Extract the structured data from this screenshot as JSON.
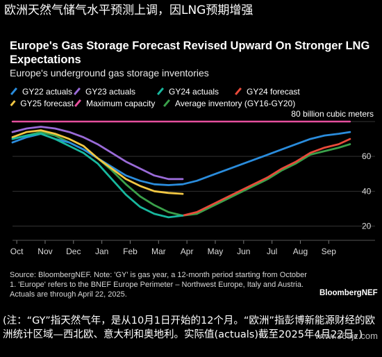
{
  "headline": "欧洲天然气储气水平预测上调，因LNG预期增强",
  "chart_data": {
    "type": "line",
    "title": "Europe's Gas Storage Forecast Revised Upward On Stronger LNG Expectations",
    "subtitle": "Europe's underground gas storage inventories",
    "xlabel": "",
    "ylabel": "",
    "categories": [
      "Oct",
      "Nov",
      "Dec",
      "Jan",
      "Feb",
      "Mar",
      "Apr",
      "May",
      "Jun",
      "Jul",
      "Aug",
      "Sep"
    ],
    "x_range": [
      0,
      12
    ],
    "y_ticks": [
      20,
      40,
      60
    ],
    "y_range": [
      15,
      82
    ],
    "capacity_label": "80 billion cubic meters",
    "legend_position": "top",
    "grid": "horizontal",
    "series": [
      {
        "name": "GY22 actuals",
        "color": "#2a8cdc",
        "points": [
          [
            0,
            68
          ],
          [
            0.5,
            71
          ],
          [
            1,
            73
          ],
          [
            1.5,
            70
          ],
          [
            2,
            68
          ],
          [
            2.5,
            64
          ],
          [
            3,
            59
          ],
          [
            3.5,
            54
          ],
          [
            4,
            49
          ],
          [
            4.5,
            46
          ],
          [
            5,
            44
          ],
          [
            5.5,
            43.5
          ],
          [
            6,
            44
          ],
          [
            6.5,
            46
          ],
          [
            7,
            49
          ],
          [
            7.5,
            52
          ],
          [
            8,
            55
          ],
          [
            8.5,
            58
          ],
          [
            9,
            61
          ],
          [
            9.5,
            64
          ],
          [
            10,
            67
          ],
          [
            10.5,
            70
          ],
          [
            11,
            72
          ],
          [
            11.5,
            73
          ],
          [
            11.9,
            74
          ]
        ]
      },
      {
        "name": "GY23 actuals",
        "color": "#9a6bd8",
        "points": [
          [
            0,
            74
          ],
          [
            0.5,
            76
          ],
          [
            1,
            77
          ],
          [
            1.5,
            76
          ],
          [
            2,
            74
          ],
          [
            2.5,
            71
          ],
          [
            3,
            67
          ],
          [
            3.5,
            62
          ],
          [
            4,
            57
          ],
          [
            4.5,
            53
          ],
          [
            5,
            49
          ],
          [
            5.5,
            47
          ],
          [
            6,
            47
          ]
        ]
      },
      {
        "name": "GY24 actuals",
        "color": "#18b89e",
        "points": [
          [
            0,
            70
          ],
          [
            0.5,
            72
          ],
          [
            1,
            73
          ],
          [
            1.5,
            70
          ],
          [
            2,
            66
          ],
          [
            2.5,
            62
          ],
          [
            3,
            56
          ],
          [
            3.5,
            47
          ],
          [
            4,
            38
          ],
          [
            4.5,
            31
          ],
          [
            5,
            27
          ],
          [
            5.5,
            25
          ],
          [
            6,
            26
          ]
        ]
      },
      {
        "name": "GY24 forecast",
        "color": "#e84a3a",
        "points": [
          [
            6,
            26
          ],
          [
            6.5,
            28
          ],
          [
            7,
            32
          ],
          [
            7.5,
            36
          ],
          [
            8,
            40
          ],
          [
            8.5,
            44
          ],
          [
            9,
            48
          ],
          [
            9.5,
            53
          ],
          [
            10,
            57
          ],
          [
            10.5,
            62
          ],
          [
            11,
            65
          ],
          [
            11.5,
            67
          ],
          [
            11.9,
            70
          ]
        ]
      },
      {
        "name": "GY25 forecast",
        "color": "#f2c744",
        "points": [
          [
            0,
            71
          ],
          [
            0.5,
            74
          ],
          [
            1,
            75
          ],
          [
            1.5,
            73
          ],
          [
            2,
            70
          ],
          [
            2.5,
            66
          ],
          [
            3,
            59
          ],
          [
            3.5,
            53
          ],
          [
            4,
            47
          ],
          [
            4.5,
            43
          ],
          [
            5,
            40
          ],
          [
            5.5,
            39
          ],
          [
            6,
            38.5
          ]
        ]
      },
      {
        "name": "Maximum capacity",
        "color": "#e6509e",
        "points": [
          [
            0,
            80
          ],
          [
            11.9,
            80
          ]
        ]
      },
      {
        "name": "Average inventory (GY16-GY20)",
        "color": "#3aa04a",
        "points": [
          [
            0,
            70
          ],
          [
            0.5,
            72
          ],
          [
            1,
            74
          ],
          [
            1.5,
            72
          ],
          [
            2,
            68
          ],
          [
            2.5,
            64
          ],
          [
            3,
            59
          ],
          [
            3.5,
            52
          ],
          [
            4,
            44
          ],
          [
            4.5,
            37
          ],
          [
            5,
            32
          ],
          [
            5.5,
            28
          ],
          [
            6,
            26
          ],
          [
            6.5,
            27
          ],
          [
            7,
            31
          ],
          [
            7.5,
            35
          ],
          [
            8,
            39
          ],
          [
            8.5,
            43
          ],
          [
            9,
            47
          ],
          [
            9.5,
            52
          ],
          [
            10,
            56
          ],
          [
            10.5,
            61
          ],
          [
            11,
            63
          ],
          [
            11.5,
            65
          ],
          [
            11.9,
            67
          ]
        ]
      }
    ]
  },
  "source": "Source: BloombergNEF. Note: 'GY' is gas year, a 12-month period starting from October 1. 'Europe' refers to the BNEF Europe Perimeter – Northwest Europe, Italy and Austria. Actuals are through April 22, 2025.",
  "brand": "BloombergNEF",
  "note": "(注：“GY”指天然气年，是从10月1日开始的12个月。“欧洲”指彭博新能源财经的欧洲统计区域—西北欧、意大利和奥地利。实际值(actuals)截至2025年4月22日。)",
  "watermark": "www.365jz.com"
}
